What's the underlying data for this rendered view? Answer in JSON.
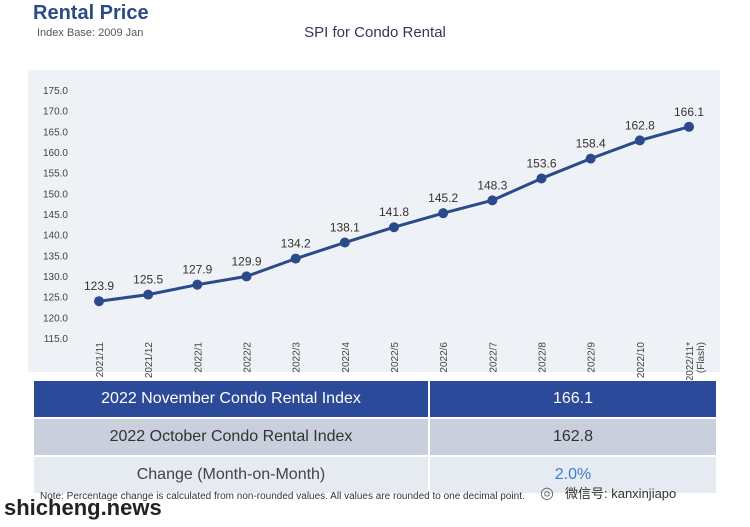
{
  "header": {
    "title": "Rental Price",
    "subtitle": "Index Base: 2009 Jan"
  },
  "chart_data": {
    "type": "line",
    "title": "SPI for Condo Rental",
    "categories": [
      "2021/11",
      "2021/12",
      "2022/1",
      "2022/2",
      "2022/3",
      "2022/4",
      "2022/5",
      "2022/6",
      "2022/7",
      "2022/8",
      "2022/9",
      "2022/10",
      "2022/11*"
    ],
    "category_sublabels": [
      "",
      "",
      "",
      "",
      "",
      "",
      "",
      "",
      "",
      "",
      "",
      "",
      "(Flash)"
    ],
    "values": [
      123.9,
      125.5,
      127.9,
      129.9,
      134.2,
      138.1,
      141.8,
      145.2,
      148.3,
      153.6,
      158.4,
      162.8,
      166.1
    ],
    "value_labels": [
      "123.9",
      "125.5",
      "127.9",
      "129.9",
      "134.2",
      "138.1",
      "141.8",
      "145.2",
      "148.3",
      "153.6",
      "158.4",
      "162.8",
      "166.1"
    ],
    "y_ticks": [
      "115.0",
      "120.0",
      "125.0",
      "130.0",
      "135.0",
      "140.0",
      "145.0",
      "150.0",
      "155.0",
      "160.0",
      "165.0",
      "170.0",
      "175.0"
    ],
    "ylim": [
      115,
      175
    ],
    "grid": false,
    "colors": {
      "line": "#2b4a8c",
      "plot_bg": "#eef1f5"
    }
  },
  "summary_table": {
    "rows": [
      {
        "label": "2022 November Condo Rental Index",
        "value": "166.1"
      },
      {
        "label": "2022 October Condo Rental Index",
        "value": "162.8"
      },
      {
        "label": "Change (Month-on-Month)",
        "value": "2.0%"
      }
    ]
  },
  "footer": {
    "note": "Note: Percentage change is calculated from non-rounded values.  All values are rounded to one decimal point.",
    "brand": "shicheng.news",
    "wechat_label": "微信号: kanxinjiapo"
  }
}
